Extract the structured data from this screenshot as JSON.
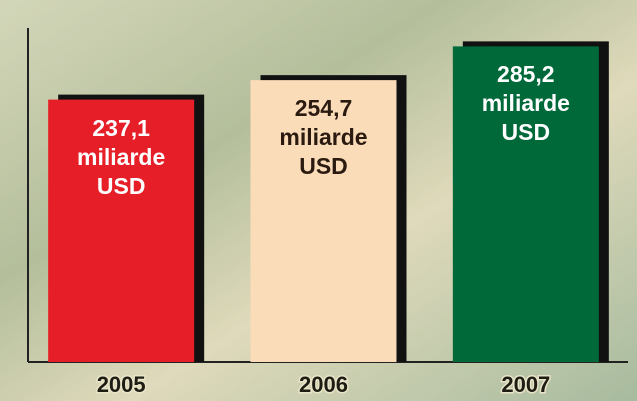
{
  "chart_data": {
    "type": "bar",
    "categories": [
      "2005",
      "2006",
      "2007"
    ],
    "values": [
      237.1,
      254.7,
      285.2
    ],
    "value_labels": [
      "237,1 miliarde USD",
      "254,7 miliarde USD",
      "285,2 miliarde USD"
    ],
    "colors": [
      "#e61e28",
      "#fbdcb9",
      "#00693a"
    ],
    "label_colors": [
      "#ffffff",
      "#2a1a10",
      "#ffffff"
    ],
    "ylim": [
      0,
      300
    ]
  }
}
